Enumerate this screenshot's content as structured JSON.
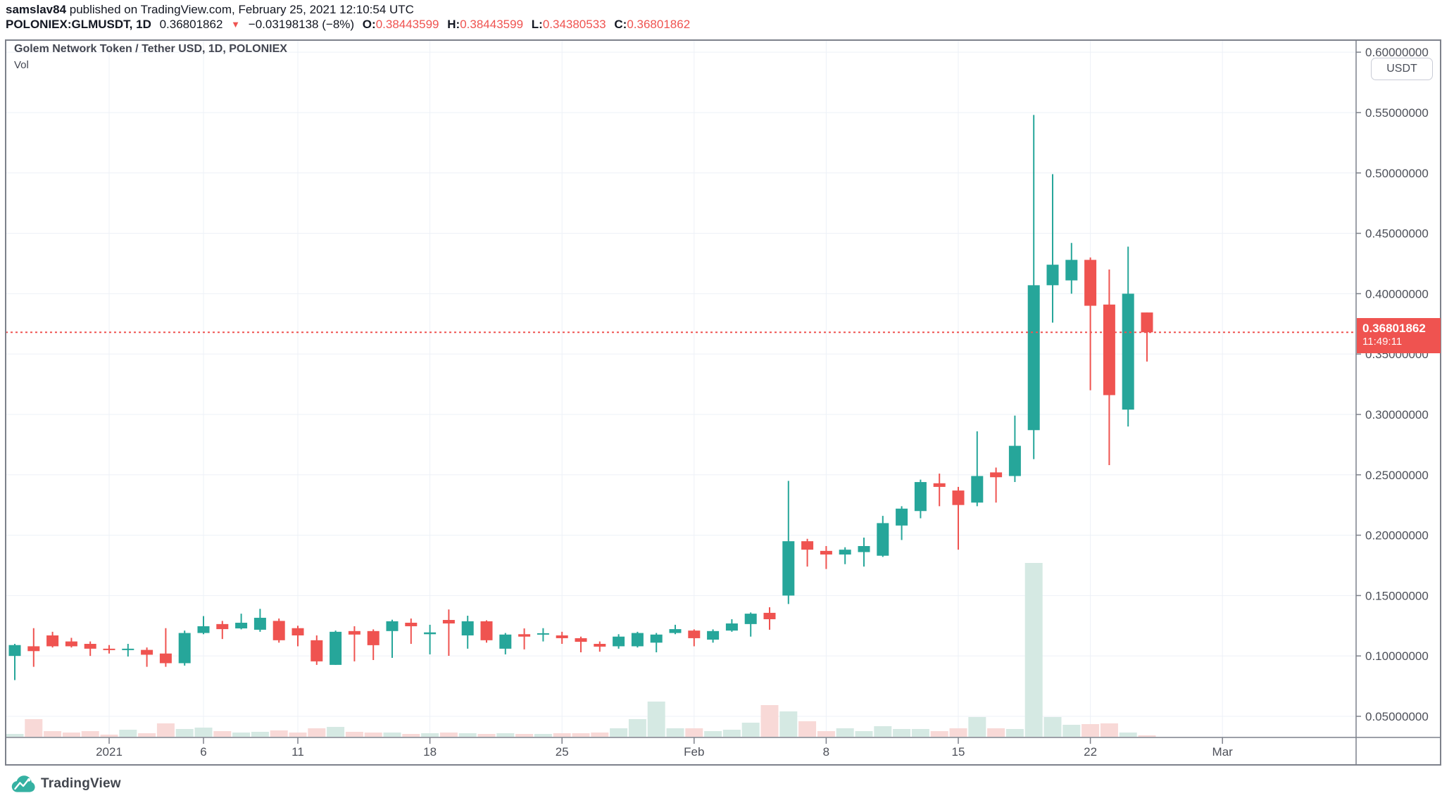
{
  "header": {
    "author": "samslav84",
    "published_line": " published on TradingView.com, February 25, 2021 12:10:54 UTC",
    "symbol_line": {
      "symbol": "POLONIEX:GLMUSDT, 1D",
      "last_price": "0.36801862",
      "direction_arrow": "▼",
      "change": "−0.03198138 (−8%)",
      "open_label": "O:",
      "open_value": "0.38443599",
      "high_label": "H:",
      "high_value": "0.38443599",
      "low_label": "L:",
      "low_value": "0.34380533",
      "close_label": "C:",
      "close_value": "0.36801862"
    }
  },
  "chart": {
    "title": "Golem Network Token / Tether USD, 1D, POLONIEX",
    "indicator_label": "Vol",
    "axis_currency_button": "USDT",
    "price_tag": {
      "price": "0.36801862",
      "countdown": "11:49:11"
    }
  },
  "logo": {
    "text": "TradingView"
  },
  "colors": {
    "up": "#26a69a",
    "down": "#ef5350",
    "vol_up": "#d5e9e3",
    "vol_down": "#f8d9d7",
    "grid": "#edf1f7",
    "frame": "#7d818b",
    "axis_text": "#4d5059",
    "price_line": "#ef5350",
    "tag_bg": "#ef5350",
    "logo_teal": "#35b1a2"
  },
  "chart_data": {
    "type": "candlestick+volume",
    "title": "Golem Network Token / Tether USD, 1D, POLONIEX",
    "symbol": "POLONIEX:GLMUSDT",
    "interval": "1D",
    "grid": true,
    "legend_position": "none",
    "ylim": [
      0.0325,
      0.61
    ],
    "y_ticks": [
      {
        "price": 0.6,
        "label": "0.60000000"
      },
      {
        "price": 0.55,
        "label": "0.55000000"
      },
      {
        "price": 0.5,
        "label": "0.50000000"
      },
      {
        "price": 0.45,
        "label": "0.45000000"
      },
      {
        "price": 0.4,
        "label": "0.40000000"
      },
      {
        "price": 0.35,
        "label": "0.35000000"
      },
      {
        "price": 0.3,
        "label": "0.30000000"
      },
      {
        "price": 0.25,
        "label": "0.25000000"
      },
      {
        "price": 0.2,
        "label": "0.20000000"
      },
      {
        "price": 0.15,
        "label": "0.15000000"
      },
      {
        "price": 0.1,
        "label": "0.10000000"
      },
      {
        "price": 0.05,
        "label": "0.05000000"
      }
    ],
    "x_ticks": [
      {
        "label": "2021",
        "index": 5
      },
      {
        "label": "6",
        "index": 10
      },
      {
        "label": "11",
        "index": 15
      },
      {
        "label": "18",
        "index": 22
      },
      {
        "label": "25",
        "index": 29
      },
      {
        "label": "Feb",
        "index": 36
      },
      {
        "label": "8",
        "index": 43
      },
      {
        "label": "15",
        "index": 50
      },
      {
        "label": "22",
        "index": 57
      },
      {
        "label": "Mar",
        "index": 64
      }
    ],
    "last_price": 0.36801862,
    "last_price_label": "0.36801862",
    "countdown": "11:49:11",
    "columns": [
      "date",
      "open",
      "high",
      "low",
      "close",
      "volume_rel"
    ],
    "candles": [
      [
        "2020-12-27",
        0.1,
        0.11,
        0.08,
        0.109,
        4
      ],
      [
        "2020-12-28",
        0.108,
        0.123,
        0.091,
        0.104,
        25
      ],
      [
        "2020-12-29",
        0.117,
        0.12,
        0.107,
        0.108,
        8
      ],
      [
        "2020-12-30",
        0.112,
        0.115,
        0.107,
        0.108,
        6
      ],
      [
        "2020-12-31",
        0.11,
        0.112,
        0.1,
        0.106,
        8
      ],
      [
        "2021-01-01",
        0.106,
        0.109,
        0.102,
        0.105,
        3
      ],
      [
        "2021-01-02",
        0.105,
        0.11,
        0.0995,
        0.106,
        10
      ],
      [
        "2021-01-03",
        0.105,
        0.107,
        0.091,
        0.101,
        5
      ],
      [
        "2021-01-04",
        0.102,
        0.123,
        0.091,
        0.094,
        19
      ],
      [
        "2021-01-05",
        0.094,
        0.121,
        0.092,
        0.119,
        11
      ],
      [
        "2021-01-06",
        0.119,
        0.133,
        0.118,
        0.1246,
        13
      ],
      [
        "2021-01-07",
        0.1264,
        0.129,
        0.114,
        0.1222,
        8
      ],
      [
        "2021-01-08",
        0.1228,
        0.135,
        0.122,
        0.1275,
        6
      ],
      [
        "2021-01-09",
        0.1217,
        0.139,
        0.12,
        0.1316,
        7
      ],
      [
        "2021-01-10",
        0.129,
        0.131,
        0.111,
        0.113,
        9
      ],
      [
        "2021-01-11",
        0.123,
        0.125,
        0.108,
        0.117,
        6
      ],
      [
        "2021-01-12",
        0.113,
        0.117,
        0.0926,
        0.0955,
        12
      ],
      [
        "2021-01-13",
        0.0926,
        0.121,
        0.0926,
        0.12,
        14
      ],
      [
        "2021-01-14",
        0.1206,
        0.1246,
        0.0955,
        0.1177,
        7
      ],
      [
        "2021-01-15",
        0.1206,
        0.122,
        0.0966,
        0.1089,
        6
      ],
      [
        "2021-01-16",
        0.1206,
        0.13,
        0.0984,
        0.1287,
        6
      ],
      [
        "2021-01-17",
        0.1275,
        0.131,
        0.11,
        0.1246,
        4
      ],
      [
        "2021-01-18",
        0.118,
        0.1258,
        0.1013,
        0.1195,
        5
      ],
      [
        "2021-01-19",
        0.1298,
        0.1385,
        0.1001,
        0.1269,
        6
      ],
      [
        "2021-01-20",
        0.117,
        0.1333,
        0.106,
        0.1287,
        5
      ],
      [
        "2021-01-21",
        0.1287,
        0.1295,
        0.111,
        0.113,
        4
      ],
      [
        "2021-01-22",
        0.106,
        0.119,
        0.1013,
        0.1177,
        5
      ],
      [
        "2021-01-23",
        0.118,
        0.1228,
        0.1054,
        0.116,
        4
      ],
      [
        "2021-01-24",
        0.1177,
        0.123,
        0.112,
        0.1188,
        4
      ],
      [
        "2021-01-25",
        0.117,
        0.12,
        0.11,
        0.1147,
        5
      ],
      [
        "2021-01-26",
        0.1147,
        0.116,
        0.103,
        0.1117,
        5
      ],
      [
        "2021-01-27",
        0.11,
        0.112,
        0.1035,
        0.1077,
        6
      ],
      [
        "2021-01-28",
        0.108,
        0.118,
        0.106,
        0.116,
        12
      ],
      [
        "2021-01-29",
        0.108,
        0.12,
        0.107,
        0.119,
        25
      ],
      [
        "2021-01-30",
        0.111,
        0.119,
        0.103,
        0.1177,
        50
      ],
      [
        "2021-01-31",
        0.119,
        0.1258,
        0.118,
        0.1222,
        12
      ],
      [
        "2021-02-01",
        0.121,
        0.122,
        0.108,
        0.1147,
        12
      ],
      [
        "2021-02-02",
        0.1135,
        0.122,
        0.111,
        0.1206,
        8
      ],
      [
        "2021-02-03",
        0.121,
        0.1304,
        0.12,
        0.1269,
        10
      ],
      [
        "2021-02-04",
        0.1264,
        0.136,
        0.116,
        0.135,
        20
      ],
      [
        "2021-02-05",
        0.1357,
        0.1403,
        0.1217,
        0.1304,
        45
      ],
      [
        "2021-02-06",
        0.15,
        0.245,
        0.143,
        0.195,
        36
      ],
      [
        "2021-02-07",
        0.195,
        0.197,
        0.174,
        0.188,
        22
      ],
      [
        "2021-02-08",
        0.187,
        0.191,
        0.172,
        0.184,
        8
      ],
      [
        "2021-02-09",
        0.184,
        0.19,
        0.176,
        0.188,
        12
      ],
      [
        "2021-02-10",
        0.186,
        0.198,
        0.174,
        0.191,
        8
      ],
      [
        "2021-02-11",
        0.183,
        0.216,
        0.182,
        0.21,
        15
      ],
      [
        "2021-02-12",
        0.208,
        0.224,
        0.196,
        0.222,
        11
      ],
      [
        "2021-02-13",
        0.22,
        0.246,
        0.214,
        0.244,
        11
      ],
      [
        "2021-02-14",
        0.243,
        0.251,
        0.224,
        0.24,
        8
      ],
      [
        "2021-02-15",
        0.237,
        0.24,
        0.188,
        0.225,
        12
      ],
      [
        "2021-02-16",
        0.227,
        0.286,
        0.224,
        0.249,
        28
      ],
      [
        "2021-02-17",
        0.252,
        0.256,
        0.227,
        0.248,
        12
      ],
      [
        "2021-02-18",
        0.249,
        0.299,
        0.244,
        0.274,
        11
      ],
      [
        "2021-02-19",
        0.287,
        0.548,
        0.263,
        0.407,
        247
      ],
      [
        "2021-02-20",
        0.407,
        0.499,
        0.376,
        0.424,
        28
      ],
      [
        "2021-02-21",
        0.411,
        0.442,
        0.4,
        0.428,
        17
      ],
      [
        "2021-02-22",
        0.428,
        0.43,
        0.32,
        0.39,
        18
      ],
      [
        "2021-02-23",
        0.391,
        0.42,
        0.258,
        0.316,
        19
      ],
      [
        "2021-02-24",
        0.304,
        0.439,
        0.29,
        0.4,
        6
      ],
      [
        "2021-02-25",
        0.38443599,
        0.38443599,
        0.34380533,
        0.36801862,
        2
      ]
    ]
  }
}
